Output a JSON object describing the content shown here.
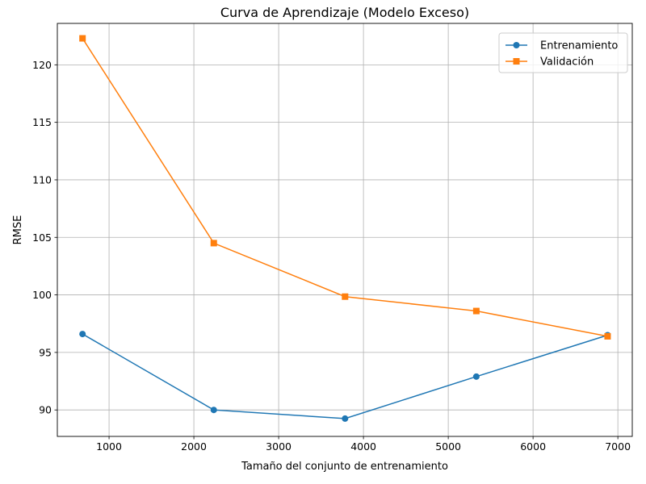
{
  "chart_data": {
    "type": "line",
    "title": "Curva de Aprendizaje (Modelo Exceso)",
    "xlabel": "Tamaño del conjunto de entrenamiento",
    "ylabel": "RMSE",
    "xlim": [
      390,
      7170
    ],
    "ylim": [
      87.7,
      123.6
    ],
    "xticks": [
      1000,
      2000,
      3000,
      4000,
      5000,
      6000,
      7000
    ],
    "yticks": [
      90,
      95,
      100,
      105,
      110,
      115,
      120
    ],
    "grid": true,
    "legend_position": "top-right",
    "x": [
      687,
      2235,
      3783,
      5331,
      6879
    ],
    "series": [
      {
        "name": "Entrenamiento",
        "marker": "circle",
        "color": "#1f77b4",
        "values": [
          96.6,
          90.0,
          89.25,
          92.9,
          96.5
        ]
      },
      {
        "name": "Validación",
        "marker": "square",
        "color": "#ff7f0e",
        "values": [
          122.3,
          104.5,
          99.85,
          98.6,
          96.4
        ]
      }
    ]
  }
}
